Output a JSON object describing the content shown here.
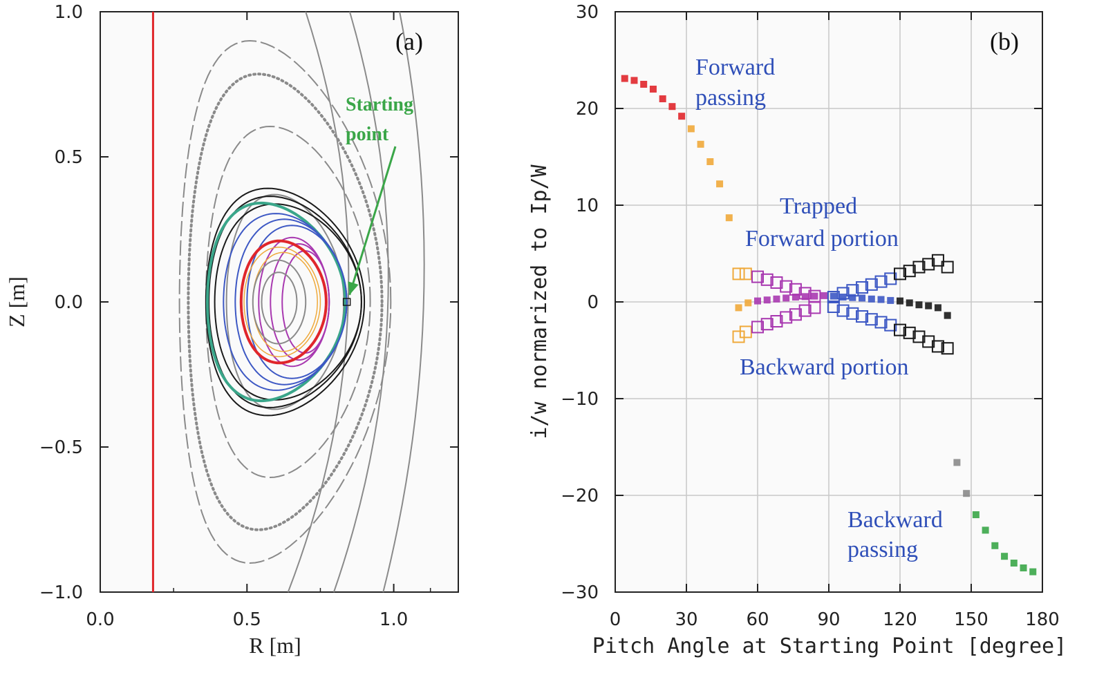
{
  "colors": {
    "red": "#e0262b",
    "orange": "#efa93a",
    "purple": "#a838b0",
    "blue": "#3d58c4",
    "black": "#1a1a1a",
    "green": "#3aa648",
    "gray": "#8a8a8a",
    "teal": "#3aa68a",
    "annotation_blue": "#2f4fb8",
    "grid": "#c8c8c8"
  },
  "chart_data": [
    {
      "id": "a",
      "type": "scatter",
      "panel_label": "(a)",
      "xlabel": "R [m]",
      "ylabel": "Z [m]",
      "xlim": [
        0.0,
        1.22
      ],
      "ylim": [
        -1.0,
        1.0
      ],
      "x_ticks": [
        "0.0",
        "0.5",
        "1.0"
      ],
      "x_tick_values": [
        0.0,
        0.5,
        1.0
      ],
      "y_ticks": [
        "1.0",
        "0.5",
        "0.0",
        "−0.5",
        "−1.0"
      ],
      "y_tick_values": [
        1.0,
        0.5,
        0.0,
        -0.5,
        -1.0
      ],
      "grid": false,
      "wall_line": {
        "r": 0.18,
        "color": "red"
      },
      "annotation": {
        "text_line1": "Starting",
        "text_line2": "point",
        "arrow_to": [
          0.84,
          0.01
        ]
      },
      "contours": [
        {
          "kind": "dotted",
          "color": "gray",
          "r0": 0.63,
          "a": 0.33,
          "k": 2.38,
          "d": 0.28,
          "sw": 4,
          "dash": "2 5"
        },
        {
          "kind": "dashed",
          "color": "gray",
          "r0": 0.63,
          "a": 0.36,
          "k": 2.5,
          "d": 0.34,
          "sw": 2,
          "dash": "22 6"
        },
        {
          "kind": "dashed",
          "color": "gray",
          "r0": 0.64,
          "a": 0.28,
          "k": 2.16,
          "d": 0.22,
          "sw": 2,
          "dash": "22 6"
        },
        {
          "kind": "solid",
          "color": "gray",
          "r0": 0.63,
          "a": 0.2,
          "k": 1.85,
          "d": 0.18,
          "sw": 2
        },
        {
          "kind": "solid",
          "color": "black",
          "r0": 0.63,
          "a": 0.27,
          "k": 1.45,
          "d": 0.22,
          "sw": 2
        },
        {
          "kind": "solid",
          "color": "black",
          "r0": 0.63,
          "a": 0.26,
          "k": 1.4,
          "d": 0.2,
          "sw": 2
        },
        {
          "kind": "solid",
          "color": "black",
          "r0": 0.64,
          "a": 0.25,
          "k": 1.35,
          "d": 0.18,
          "sw": 2
        },
        {
          "kind": "solid",
          "color": "teal",
          "r0": 0.6,
          "a": 0.235,
          "k": 1.45,
          "d": 0.22,
          "sw": 4
        },
        {
          "kind": "solid",
          "color": "blue",
          "r0": 0.63,
          "a": 0.21,
          "k": 1.45,
          "d": 0.15,
          "sw": 2
        },
        {
          "kind": "solid",
          "color": "blue",
          "r0": 0.65,
          "a": 0.19,
          "k": 1.5,
          "d": 0.12,
          "sw": 2
        },
        {
          "kind": "solid",
          "color": "blue",
          "r0": 0.67,
          "a": 0.17,
          "k": 1.55,
          "d": 0.1,
          "sw": 2
        },
        {
          "kind": "solid",
          "color": "purple",
          "r0": 0.66,
          "a": 0.12,
          "k": 1.85,
          "d": 0.05,
          "sw": 2
        },
        {
          "kind": "solid",
          "color": "purple",
          "r0": 0.68,
          "a": 0.1,
          "k": 2.0,
          "d": 0.03,
          "sw": 2
        },
        {
          "kind": "solid",
          "color": "purple",
          "r0": 0.7,
          "a": 0.08,
          "k": 2.2,
          "d": 0.02,
          "sw": 2
        },
        {
          "kind": "solid",
          "color": "red",
          "r0": 0.625,
          "a": 0.145,
          "k": 1.45,
          "d": 0.1,
          "sw": 4
        },
        {
          "kind": "solid",
          "color": "orange",
          "r0": 0.62,
          "a": 0.13,
          "k": 1.45,
          "d": 0.08,
          "sw": 1.5
        },
        {
          "kind": "solid",
          "color": "orange",
          "r0": 0.63,
          "a": 0.11,
          "k": 1.55,
          "d": 0.06,
          "sw": 1.5
        },
        {
          "kind": "solid",
          "color": "gray",
          "r0": 0.61,
          "a": 0.09,
          "k": 1.6,
          "d": 0.05,
          "sw": 2
        },
        {
          "kind": "solid",
          "color": "gray",
          "r0": 0.61,
          "a": 0.06,
          "k": 1.7,
          "d": 0.03,
          "sw": 2
        }
      ],
      "outer_arcs": [
        {
          "r_top": 0.9,
          "r_bot": 0.7,
          "bulge": 0.2
        },
        {
          "r_top": 1.03,
          "r_bot": 0.85,
          "bulge": 0.18
        },
        {
          "r_top": 1.14,
          "r_bot": 1.0,
          "bulge": 0.12
        }
      ],
      "start_marker": [
        0.84,
        0.0
      ]
    },
    {
      "id": "b",
      "type": "scatter",
      "panel_label": "(b)",
      "xlabel": "Pitch Angle at Starting Point [degree]",
      "ylabel": "i/w normarized to Ip/W",
      "xlim": [
        0,
        180
      ],
      "ylim": [
        -30,
        30
      ],
      "x_ticks": [
        "0",
        "30",
        "60",
        "90",
        "120",
        "150",
        "180"
      ],
      "x_tick_values": [
        0,
        30,
        60,
        90,
        120,
        150,
        180
      ],
      "y_ticks": [
        "30",
        "20",
        "10",
        "0",
        "−10",
        "−20",
        "−30"
      ],
      "y_tick_values": [
        30,
        20,
        10,
        0,
        -10,
        -20,
        -30
      ],
      "grid": true,
      "annotations": {
        "forward_passing_1": "Forward",
        "forward_passing_2": "passing",
        "trapped_1": "Trapped",
        "trapped_2": "Forward  portion",
        "backward_portion": "Backward  portion",
        "backward_passing_1": "Backward",
        "backward_passing_2": "passing"
      },
      "series": [
        {
          "color": "red",
          "marker": "filled",
          "points": [
            [
              4,
              23.1
            ],
            [
              8,
              22.9
            ],
            [
              12,
              22.5
            ],
            [
              16,
              22.0
            ],
            [
              20,
              21.0
            ],
            [
              24,
              20.2
            ],
            [
              28,
              19.2
            ]
          ]
        },
        {
          "color": "orange",
          "marker": "filled",
          "points": [
            [
              32,
              17.9
            ],
            [
              36,
              16.3
            ],
            [
              40,
              14.5
            ],
            [
              44,
              12.2
            ],
            [
              48,
              8.7
            ],
            [
              52,
              -0.6
            ],
            [
              56,
              -0.1
            ]
          ]
        },
        {
          "color": "orange",
          "marker": "open",
          "points": [
            [
              52,
              2.9
            ],
            [
              55,
              2.9
            ],
            [
              52,
              -3.6
            ],
            [
              55,
              -3.1
            ]
          ]
        },
        {
          "color": "purple",
          "marker": "open",
          "points": [
            [
              60,
              2.6
            ],
            [
              64,
              2.3
            ],
            [
              68,
              2.0
            ],
            [
              72,
              1.6
            ],
            [
              76,
              1.3
            ],
            [
              80,
              0.9
            ],
            [
              84,
              0.6
            ],
            [
              60,
              -2.6
            ],
            [
              64,
              -2.3
            ],
            [
              68,
              -2.0
            ],
            [
              72,
              -1.6
            ],
            [
              76,
              -1.3
            ],
            [
              80,
              -0.9
            ],
            [
              84,
              -0.6
            ]
          ]
        },
        {
          "color": "purple",
          "marker": "filled",
          "points": [
            [
              60,
              0.1
            ],
            [
              64,
              0.2
            ],
            [
              68,
              0.3
            ],
            [
              72,
              0.4
            ],
            [
              76,
              0.5
            ],
            [
              80,
              0.55
            ],
            [
              84,
              0.6
            ],
            [
              88,
              0.65
            ]
          ]
        },
        {
          "color": "blue",
          "marker": "open",
          "points": [
            [
              92,
              0.5
            ],
            [
              96,
              0.9
            ],
            [
              100,
              1.2
            ],
            [
              104,
              1.5
            ],
            [
              108,
              1.8
            ],
            [
              112,
              2.1
            ],
            [
              116,
              2.4
            ],
            [
              92,
              -0.5
            ],
            [
              96,
              -0.9
            ],
            [
              100,
              -1.2
            ],
            [
              104,
              -1.5
            ],
            [
              108,
              -1.8
            ],
            [
              112,
              -2.1
            ],
            [
              116,
              -2.4
            ]
          ]
        },
        {
          "color": "blue",
          "marker": "filled",
          "points": [
            [
              92,
              0.6
            ],
            [
              96,
              0.5
            ],
            [
              100,
              0.45
            ],
            [
              104,
              0.4
            ],
            [
              108,
              0.3
            ],
            [
              112,
              0.25
            ],
            [
              116,
              0.15
            ]
          ]
        },
        {
          "color": "black",
          "marker": "open",
          "points": [
            [
              120,
              2.9
            ],
            [
              124,
              3.2
            ],
            [
              128,
              3.6
            ],
            [
              132,
              3.9
            ],
            [
              136,
              4.3
            ],
            [
              140,
              3.6
            ],
            [
              120,
              -2.9
            ],
            [
              124,
              -3.2
            ],
            [
              128,
              -3.6
            ],
            [
              132,
              -4.1
            ],
            [
              136,
              -4.6
            ],
            [
              140,
              -4.8
            ]
          ]
        },
        {
          "color": "black",
          "marker": "filled",
          "points": [
            [
              120,
              0.1
            ],
            [
              124,
              -0.1
            ],
            [
              128,
              -0.3
            ],
            [
              132,
              -0.4
            ],
            [
              136,
              -0.6
            ],
            [
              140,
              -1.4
            ]
          ]
        },
        {
          "color": "gray",
          "marker": "filled",
          "points": [
            [
              144,
              -16.6
            ],
            [
              148,
              -19.8
            ]
          ]
        },
        {
          "color": "green",
          "marker": "filled",
          "points": [
            [
              152,
              -22.0
            ],
            [
              156,
              -23.6
            ],
            [
              160,
              -25.2
            ],
            [
              164,
              -26.3
            ],
            [
              168,
              -27.0
            ],
            [
              172,
              -27.5
            ],
            [
              176,
              -27.9
            ]
          ]
        }
      ]
    }
  ]
}
